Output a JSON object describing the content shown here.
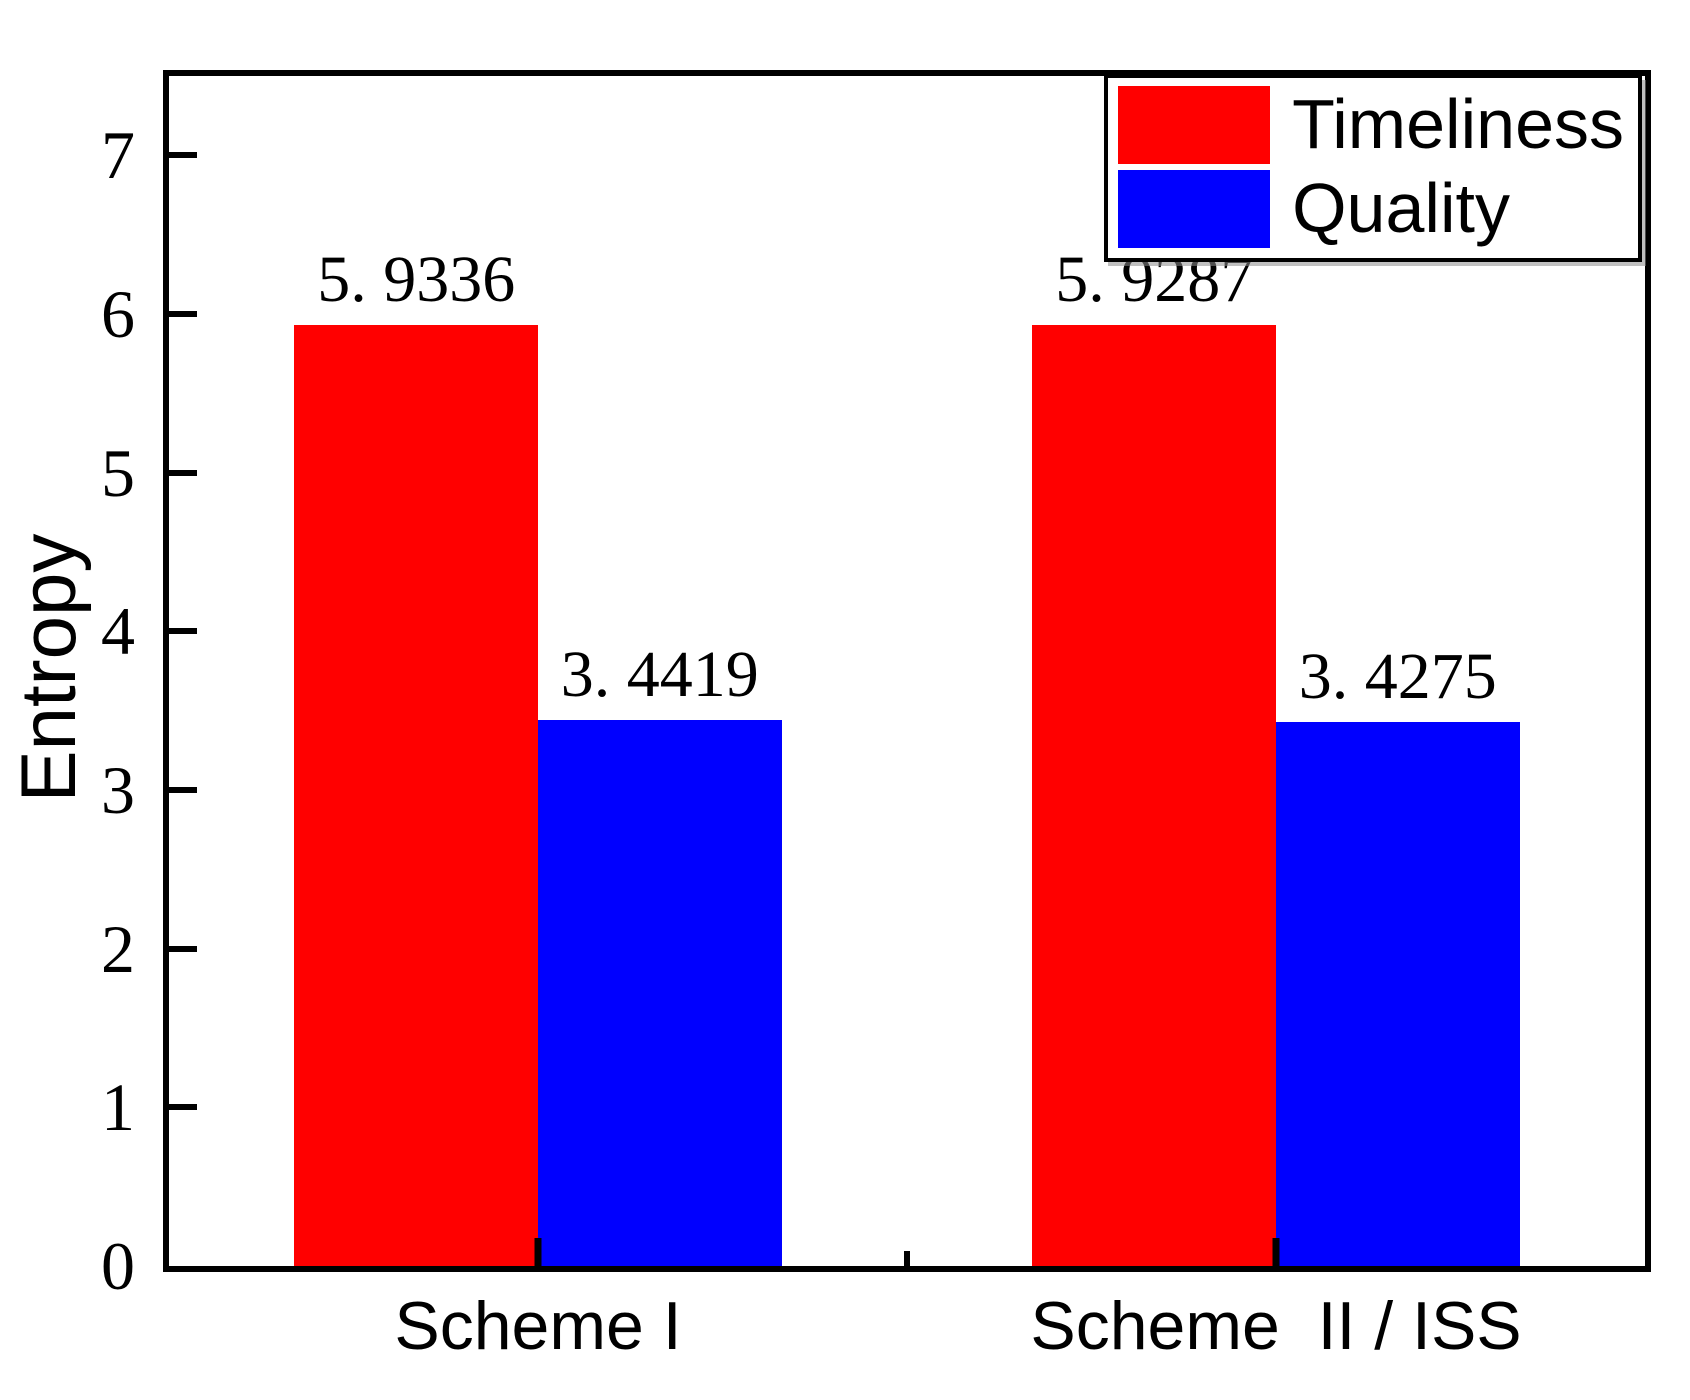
{
  "figure": {
    "background": "#ffffff"
  },
  "axes": {
    "y_tick_labels": [
      "0",
      "1",
      "2",
      "3",
      "4",
      "5",
      "6",
      "7"
    ],
    "x_minor_tick_frac": 0.5
  },
  "legend": {
    "items": [
      {
        "label": "Timeliness",
        "color": "#ff0000"
      },
      {
        "label": "Quality",
        "color": "#0000ff"
      }
    ]
  },
  "chart_data": {
    "type": "bar",
    "title": "",
    "xlabel": "",
    "ylabel": "Entropy",
    "categories": [
      "Scheme I",
      "Scheme  II / ISS"
    ],
    "series": [
      {
        "name": "Timeliness",
        "color": "#ff0000",
        "values": [
          5.9336,
          5.9287
        ],
        "value_labels": [
          "5. 9336",
          "5. 9287"
        ]
      },
      {
        "name": "Quality",
        "color": "#0000ff",
        "values": [
          3.4419,
          3.4275
        ],
        "value_labels": [
          "3. 4419",
          "3. 4275"
        ]
      }
    ],
    "ylim": [
      0,
      7.5
    ],
    "y_major_tick_step": 1,
    "grid": false,
    "legend_position": "top-right",
    "layout": {
      "group_center_fracs": [
        0.25,
        0.75
      ],
      "bar_width_frac": 0.165
    }
  }
}
